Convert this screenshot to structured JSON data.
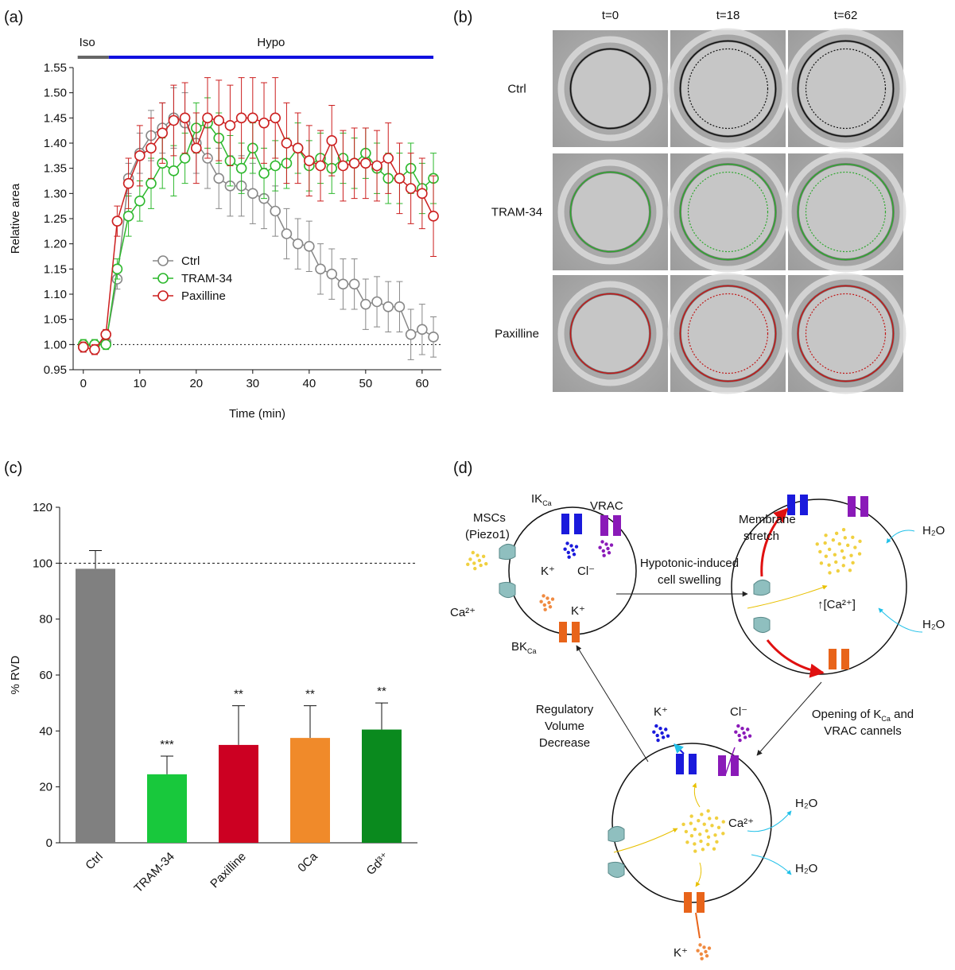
{
  "chart_data": [
    {
      "type": "line",
      "panel": "(a)",
      "xlabel": "Time (min)",
      "ylabel": "Relative area",
      "x": [
        0,
        2,
        4,
        6,
        8,
        10,
        12,
        14,
        16,
        18,
        20,
        22,
        24,
        26,
        28,
        30,
        32,
        34,
        36,
        38,
        40,
        42,
        44,
        46,
        48,
        50,
        52,
        54,
        56,
        58,
        60,
        62
      ],
      "series": [
        {
          "name": "Ctrl",
          "color": "#888888",
          "values": [
            0.995,
            1.0,
            1.005,
            1.13,
            1.33,
            1.38,
            1.415,
            1.43,
            1.45,
            1.44,
            1.4,
            1.37,
            1.33,
            1.315,
            1.315,
            1.3,
            1.29,
            1.265,
            1.22,
            1.2,
            1.195,
            1.15,
            1.14,
            1.12,
            1.12,
            1.08,
            1.085,
            1.075,
            1.075,
            1.02,
            1.03,
            1.015
          ],
          "errors": [
            0.01,
            0.01,
            0.01,
            0.02,
            0.03,
            0.04,
            0.05,
            0.05,
            0.06,
            0.06,
            0.06,
            0.06,
            0.06,
            0.06,
            0.06,
            0.06,
            0.06,
            0.05,
            0.05,
            0.05,
            0.05,
            0.05,
            0.05,
            0.05,
            0.05,
            0.05,
            0.05,
            0.05,
            0.05,
            0.05,
            0.05,
            0.04
          ]
        },
        {
          "name": "TRAM-34",
          "color": "#2db82d",
          "values": [
            1.0,
            1.0,
            1.0,
            1.15,
            1.255,
            1.285,
            1.32,
            1.36,
            1.345,
            1.37,
            1.43,
            1.44,
            1.41,
            1.365,
            1.35,
            1.39,
            1.34,
            1.355,
            1.36,
            1.39,
            1.355,
            1.37,
            1.35,
            1.37,
            1.36,
            1.38,
            1.35,
            1.33,
            1.33,
            1.35,
            1.31,
            1.33
          ],
          "errors": [
            0.01,
            0.01,
            0.01,
            0.02,
            0.04,
            0.04,
            0.05,
            0.05,
            0.05,
            0.05,
            0.05,
            0.05,
            0.05,
            0.05,
            0.05,
            0.05,
            0.05,
            0.05,
            0.05,
            0.05,
            0.05,
            0.05,
            0.05,
            0.05,
            0.05,
            0.05,
            0.05,
            0.05,
            0.05,
            0.05,
            0.05,
            0.05
          ]
        },
        {
          "name": "Paxilline",
          "color": "#cc1f1f",
          "values": [
            0.995,
            0.99,
            1.02,
            1.245,
            1.32,
            1.375,
            1.39,
            1.42,
            1.445,
            1.45,
            1.39,
            1.45,
            1.445,
            1.435,
            1.45,
            1.45,
            1.44,
            1.45,
            1.4,
            1.39,
            1.365,
            1.355,
            1.405,
            1.355,
            1.36,
            1.36,
            1.355,
            1.37,
            1.33,
            1.31,
            1.3,
            1.255
          ],
          "errors": [
            0.01,
            0.01,
            0.01,
            0.03,
            0.05,
            0.06,
            0.06,
            0.06,
            0.07,
            0.07,
            0.07,
            0.08,
            0.08,
            0.08,
            0.08,
            0.08,
            0.08,
            0.08,
            0.08,
            0.07,
            0.07,
            0.07,
            0.07,
            0.07,
            0.07,
            0.07,
            0.07,
            0.07,
            0.07,
            0.07,
            0.07,
            0.08
          ]
        }
      ],
      "xlim": [
        -1.8,
        63.4
      ],
      "xticks": [
        0,
        10,
        20,
        30,
        40,
        50,
        60
      ],
      "ylim": [
        0.95,
        1.55
      ],
      "yticks": [
        0.95,
        {
          "value": 1.0,
          "label": "1.00"
        },
        1.05,
        {
          "value": 1.1,
          "label": "1.10"
        },
        1.15,
        {
          "value": 1.2,
          "label": "1.20"
        },
        1.25,
        {
          "value": 1.3,
          "label": "1.30"
        },
        1.35,
        {
          "value": 1.4,
          "label": "1.40"
        },
        1.45,
        {
          "value": 1.5,
          "label": "1.50"
        },
        1.55
      ],
      "reference_line": 1.0,
      "phases": [
        {
          "label": "Iso",
          "start": -1,
          "end": 4.5,
          "color": "#666666"
        },
        {
          "label": "Hypo",
          "start": 4.5,
          "end": 62,
          "color": "#1010e0"
        }
      ]
    },
    {
      "type": "bar",
      "panel": "(c)",
      "ylabel": "% RVD",
      "categories": [
        "Ctrl",
        "TRAM-34",
        "Paxilline",
        "0Ca",
        "Gd³⁺"
      ],
      "values": [
        98,
        24.5,
        35,
        37.5,
        40.5
      ],
      "errors": [
        6.5,
        6.5,
        14,
        11.5,
        9.5
      ],
      "colors": [
        "#808080",
        "#18c83c",
        "#cc0022",
        "#f08a2a",
        "#0a8a1e"
      ],
      "significance": [
        null,
        "***",
        "**",
        "**",
        "**"
      ],
      "ylim": [
        0,
        120
      ],
      "yticks": [
        0,
        20,
        40,
        60,
        80,
        100,
        120
      ],
      "reference_line": 100
    }
  ],
  "micrographs": {
    "panel": "(b)",
    "columns": [
      "t=0",
      "t=18",
      "t=62"
    ],
    "rows": [
      {
        "label": "Ctrl",
        "color": "#111111"
      },
      {
        "label": "TRAM-34",
        "color": "#2fa82f"
      },
      {
        "label": "Paxilline",
        "color": "#c01818"
      }
    ]
  },
  "diagram": {
    "panel": "(d)",
    "msc": "MSCs",
    "piezo": "(Piezo1)",
    "ik": {
      "text": "IK",
      "sub": "Ca"
    },
    "vrac": "VRAC",
    "k_plus": "K⁺",
    "cl_minus": "Cl⁻",
    "ca": "Ca²⁺",
    "bk": {
      "text": "BK",
      "sub": "Ca"
    },
    "swelling": [
      "Hypotonic-induced",
      "cell swelling"
    ],
    "stretch": [
      "Membrane",
      "stretch"
    ],
    "h2o": "H₂O",
    "ca_up": "↑[Ca²⁺]",
    "opening": {
      "text": "Opening of K",
      "sub": "Ca",
      "after": " and",
      "line2": "VRAC cannels"
    },
    "rvd": [
      "Regulatory",
      "Volume",
      "Decrease"
    ]
  }
}
